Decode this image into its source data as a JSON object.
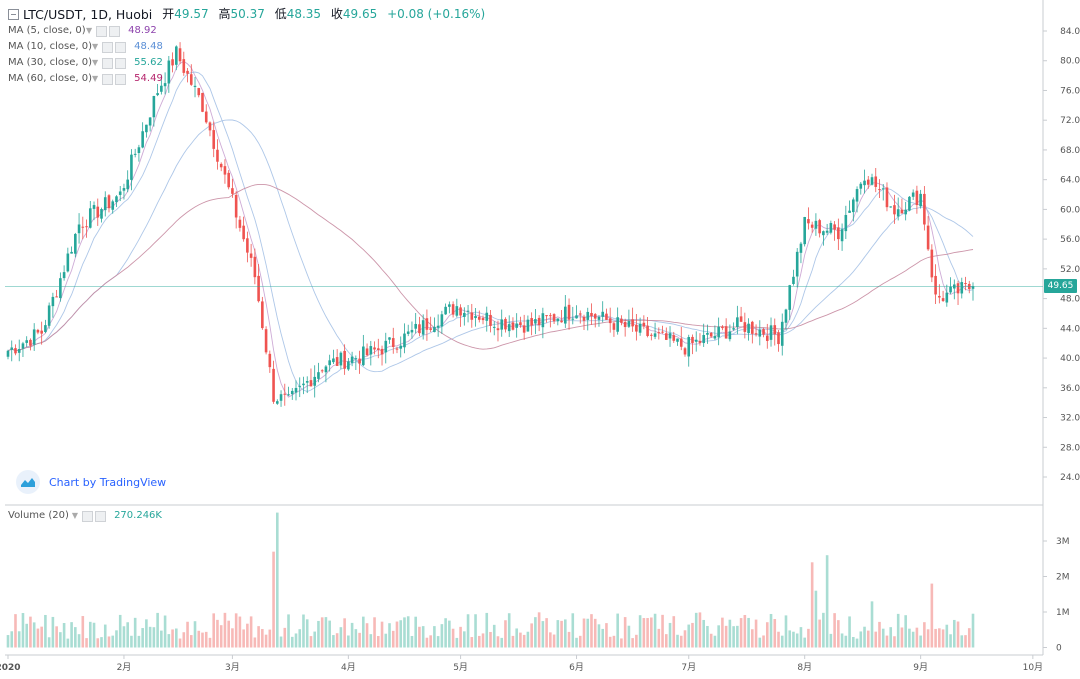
{
  "legend": {
    "symbol": "LTC/USDT, 1D, Huobi",
    "open_label": "开",
    "open": "49.57",
    "high_label": "高",
    "high": "50.37",
    "low_label": "低",
    "low": "48.35",
    "close_label": "收",
    "close": "49.65",
    "change": "+0.08 (+0.16%)"
  },
  "indicators": [
    {
      "label": "MA (5, close, 0)",
      "value": "48.92",
      "color": "#8e44ad"
    },
    {
      "label": "MA (10, close, 0)",
      "value": "48.48",
      "color": "#5b8fd6"
    },
    {
      "label": "MA (30, close, 0)",
      "value": "55.62",
      "color": "#26a69a"
    },
    {
      "label": "MA (60, close, 0)",
      "value": "54.49",
      "color": "#b5246c"
    }
  ],
  "volume_legend": {
    "label": "Volume (20)",
    "value": "270.246K"
  },
  "watermark": "Chart by TradingView",
  "last_price_tag": "49.65",
  "colors": {
    "up": "#26a69a",
    "down": "#ef5350",
    "up_vol": "#a9ddd3",
    "down_vol": "#f7b9b7",
    "ma_short": "#c9a2d2",
    "ma_mid": "#a5c1e6",
    "ma_long": "#c78aa0"
  },
  "chart_data": {
    "type": "candlestick",
    "price_axis_ticks": [
      "84.00",
      "80.00",
      "76.00",
      "72.00",
      "68.00",
      "64.00",
      "60.00",
      "56.00",
      "52.00",
      "48.00",
      "44.00",
      "40.00",
      "36.00",
      "32.00",
      "28.00",
      "24.00"
    ],
    "volume_axis_ticks": [
      "3M",
      "2M",
      "1M",
      "0"
    ],
    "time_axis_labels": [
      "2020",
      "2月",
      "3月",
      "4月",
      "5月",
      "6月",
      "7月",
      "8月",
      "9月",
      "10月"
    ],
    "ylim_price": [
      21,
      86
    ],
    "ylim_volume": [
      0,
      3.9
    ],
    "grid": false,
    "price_anchors": [
      {
        "date": "2020-01-01",
        "value": 41.0
      },
      {
        "date": "2020-01-10",
        "value": 43.5
      },
      {
        "date": "2020-01-20",
        "value": 58.0
      },
      {
        "date": "2020-01-31",
        "value": 62.0
      },
      {
        "date": "2020-02-10",
        "value": 76.0
      },
      {
        "date": "2020-02-15",
        "value": 81.0
      },
      {
        "date": "2020-02-22",
        "value": 74.0
      },
      {
        "date": "2020-03-01",
        "value": 61.0
      },
      {
        "date": "2020-03-07",
        "value": 51.0
      },
      {
        "date": "2020-03-12",
        "value": 35.0
      },
      {
        "date": "2020-03-16",
        "value": 34.0
      },
      {
        "date": "2020-03-25",
        "value": 39.0
      },
      {
        "date": "2020-04-06",
        "value": 40.5
      },
      {
        "date": "2020-04-15",
        "value": 42.5
      },
      {
        "date": "2020-04-30",
        "value": 47.0
      },
      {
        "date": "2020-05-10",
        "value": 45.0
      },
      {
        "date": "2020-05-20",
        "value": 44.5
      },
      {
        "date": "2020-06-01",
        "value": 46.5
      },
      {
        "date": "2020-06-15",
        "value": 44.0
      },
      {
        "date": "2020-06-30",
        "value": 41.5
      },
      {
        "date": "2020-07-15",
        "value": 44.5
      },
      {
        "date": "2020-07-25",
        "value": 43.0
      },
      {
        "date": "2020-08-01",
        "value": 58.0
      },
      {
        "date": "2020-08-10",
        "value": 57.0
      },
      {
        "date": "2020-08-17",
        "value": 65.0
      },
      {
        "date": "2020-08-25",
        "value": 60.0
      },
      {
        "date": "2020-09-01",
        "value": 62.0
      },
      {
        "date": "2020-09-05",
        "value": 48.0
      },
      {
        "date": "2020-09-15",
        "value": 49.65
      }
    ],
    "volume_spikes": [
      {
        "date": "2020-03-13",
        "value": 3.8
      },
      {
        "date": "2020-03-12",
        "value": 2.7
      },
      {
        "date": "2020-08-03",
        "value": 2.4
      },
      {
        "date": "2020-08-04",
        "value": 1.6
      },
      {
        "date": "2020-08-07",
        "value": 2.6
      },
      {
        "date": "2020-09-04",
        "value": 1.8
      },
      {
        "date": "2020-08-19",
        "value": 1.3
      }
    ],
    "series": [
      {
        "name": "MA (5, close, 0)",
        "last": 48.92
      },
      {
        "name": "MA (10, close, 0)",
        "last": 48.48
      },
      {
        "name": "MA (30, close, 0)",
        "last": 55.62
      },
      {
        "name": "MA (60, close, 0)",
        "last": 54.49
      },
      {
        "name": "Volume (20)",
        "last": "270.246K"
      }
    ]
  }
}
